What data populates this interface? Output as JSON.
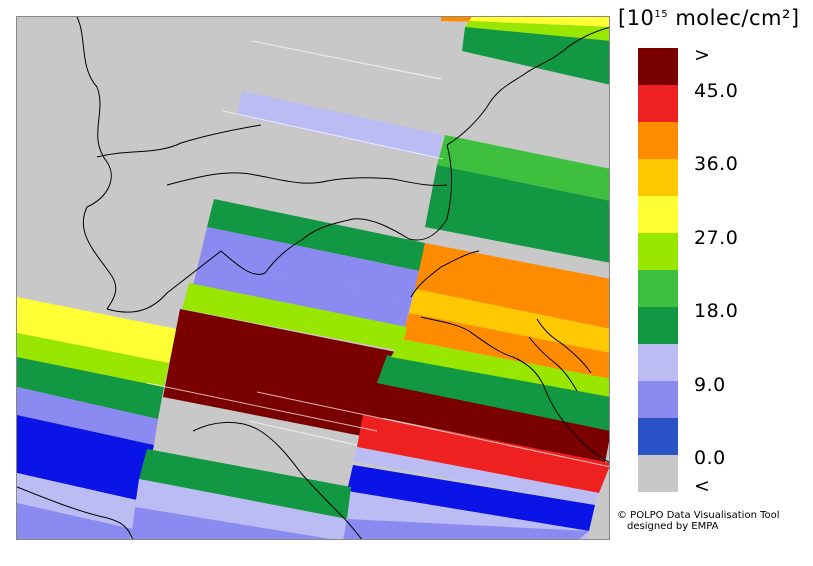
{
  "legend": {
    "unit_prefix": "[10",
    "unit_exponent": "15",
    "unit_suffix": " molec/cm²]",
    "labels": {
      "gt": ">",
      "v45": "45.0",
      "v36": "36.0",
      "v27": "27.0",
      "v18": "18.0",
      "v9": "9.0",
      "v0": "0.0",
      "lt": "<"
    },
    "colors": [
      "#7a0000",
      "#ee2020",
      "#ff8c00",
      "#ffc800",
      "#ffff33",
      "#99e600",
      "#3ebf3e",
      "#129842",
      "#bcbcf4",
      "#8a8af0",
      "#2a53c8",
      "#c8c8c8"
    ]
  },
  "credit": {
    "line1": "© POLPO Data Visualisation Tool",
    "line2": "designed by EMPA"
  }
}
